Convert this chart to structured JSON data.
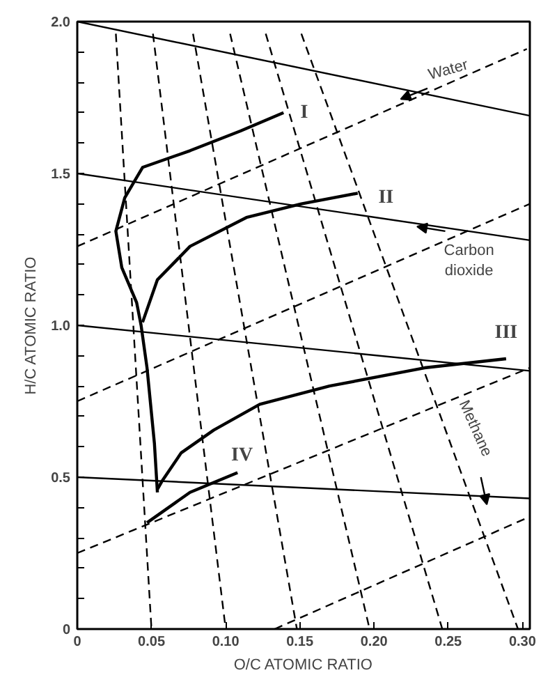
{
  "chart_data": {
    "type": "line",
    "xlabel": "O/C ATOMIC RATIO",
    "ylabel": "H/C ATOMIC RATIO",
    "xlim": [
      0,
      0.305
    ],
    "ylim": [
      0,
      2.0
    ],
    "xticks": [
      0,
      {
        "value": 0.05,
        "label": "0.05"
      },
      {
        "value": 0.1,
        "label": "0.10"
      },
      {
        "value": 0.15,
        "label": "0.15"
      },
      {
        "value": 0.2,
        "label": "0.20"
      },
      {
        "value": 0.25,
        "label": "0.25"
      },
      {
        "value": 0.3,
        "label": "0.30"
      }
    ],
    "yticks": [
      0,
      {
        "value": 0.1,
        "label": null
      },
      {
        "value": 0.2,
        "label": null
      },
      {
        "value": 0.3,
        "label": null
      },
      {
        "value": 0.4,
        "label": null
      },
      0.5,
      {
        "value": 0.6,
        "label": null
      },
      {
        "value": 0.7,
        "label": null
      },
      {
        "value": 0.8,
        "label": null
      },
      {
        "value": 0.9,
        "label": null
      },
      {
        "value": 1.0,
        "label": "1.0"
      },
      {
        "value": 1.1,
        "label": null
      },
      {
        "value": 1.2,
        "label": null
      },
      {
        "value": 1.3,
        "label": null
      },
      {
        "value": 1.4,
        "label": null
      },
      1.5,
      {
        "value": 1.6,
        "label": null
      },
      {
        "value": 1.7,
        "label": null
      },
      {
        "value": 1.8,
        "label": null
      },
      {
        "value": 1.9,
        "label": null
      },
      {
        "value": 2.0,
        "label": "2.0"
      }
    ],
    "grid": false,
    "series": [
      {
        "color": "#000000",
        "line_style": "solid",
        "x": [
          0,
          0.305
        ],
        "values": [
          2.0,
          1.69
        ]
      },
      {
        "color": "#000000",
        "line_style": "solid",
        "x": [
          0,
          0.305
        ],
        "values": [
          1.5,
          1.28
        ]
      },
      {
        "color": "#000000",
        "line_style": "solid",
        "x": [
          0,
          0.305
        ],
        "values": [
          1.0,
          0.85
        ]
      },
      {
        "color": "#000000",
        "line_style": "solid",
        "x": [
          0,
          0.305
        ],
        "values": [
          0.5,
          0.43
        ]
      },
      {
        "color": "#000000",
        "line_style": "dashed",
        "x": [
          0,
          0.303
        ],
        "values": [
          1.26,
          1.91
        ]
      },
      {
        "color": "#000000",
        "line_style": "dashed",
        "x": [
          0,
          0.305
        ],
        "values": [
          0.75,
          1.4
        ]
      },
      {
        "color": "#000000",
        "line_style": "dashed",
        "x": [
          0,
          0.305
        ],
        "values": [
          0.25,
          0.86
        ]
      },
      {
        "color": "#000000",
        "line_style": "dashed",
        "x": [
          0.133,
          0.305
        ],
        "values": [
          0,
          0.37
        ]
      },
      {
        "color": "#000000",
        "line_style": "dashed",
        "x": [
          0.026,
          0.05
        ],
        "values": [
          1.96,
          0
        ]
      },
      {
        "color": "#000000",
        "line_style": "dashed",
        "x": [
          0.051,
          0.1
        ],
        "values": [
          1.96,
          0
        ]
      },
      {
        "color": "#000000",
        "line_style": "dashed",
        "x": [
          0.078,
          0.148
        ],
        "values": [
          1.96,
          0
        ]
      },
      {
        "color": "#000000",
        "line_style": "dashed",
        "x": [
          0.103,
          0.197
        ],
        "values": [
          1.96,
          0
        ]
      },
      {
        "color": "#000000",
        "line_style": "dashed",
        "x": [
          0.127,
          0.246
        ],
        "values": [
          1.96,
          0
        ]
      },
      {
        "color": "#000000",
        "line_style": "dashed",
        "x": [
          0.151,
          0.297
        ],
        "values": [
          1.96,
          0
        ]
      },
      {
        "color": "#000000",
        "line_style": "solid",
        "x": [
          0.139,
          0.11,
          0.076,
          0.044,
          0.032,
          0.026,
          0.03,
          0.04,
          0.043,
          0.047,
          0.052,
          0.054
        ],
        "values": [
          1.7,
          1.64,
          1.575,
          1.52,
          1.42,
          1.31,
          1.19,
          1.075,
          1.0,
          0.86,
          0.61,
          0.45
        ]
      },
      {
        "color": "#000000",
        "line_style": "solid",
        "x": [
          0.044,
          0.054,
          0.076,
          0.114,
          0.151,
          0.189
        ],
        "values": [
          1.01,
          1.15,
          1.26,
          1.355,
          1.4,
          1.435
        ]
      },
      {
        "color": "#000000",
        "line_style": "solid",
        "x": [
          0.054,
          0.057,
          0.07,
          0.092,
          0.123,
          0.17,
          0.234,
          0.289
        ],
        "values": [
          0.46,
          0.486,
          0.58,
          0.655,
          0.74,
          0.8,
          0.86,
          0.89
        ]
      },
      {
        "color": "#000000",
        "line_style": "solid",
        "x": [
          0.047,
          0.076,
          0.108
        ],
        "values": [
          0.35,
          0.45,
          0.515
        ]
      }
    ],
    "annotations": [
      "I",
      "II",
      "III",
      "IV",
      {
        "text": "Water",
        "x": 0.218,
        "y": 1.745
      },
      {
        "text": "Carbon",
        "x": 0.229,
        "y": 1.325
      },
      "dioxide",
      "Methane"
    ]
  }
}
